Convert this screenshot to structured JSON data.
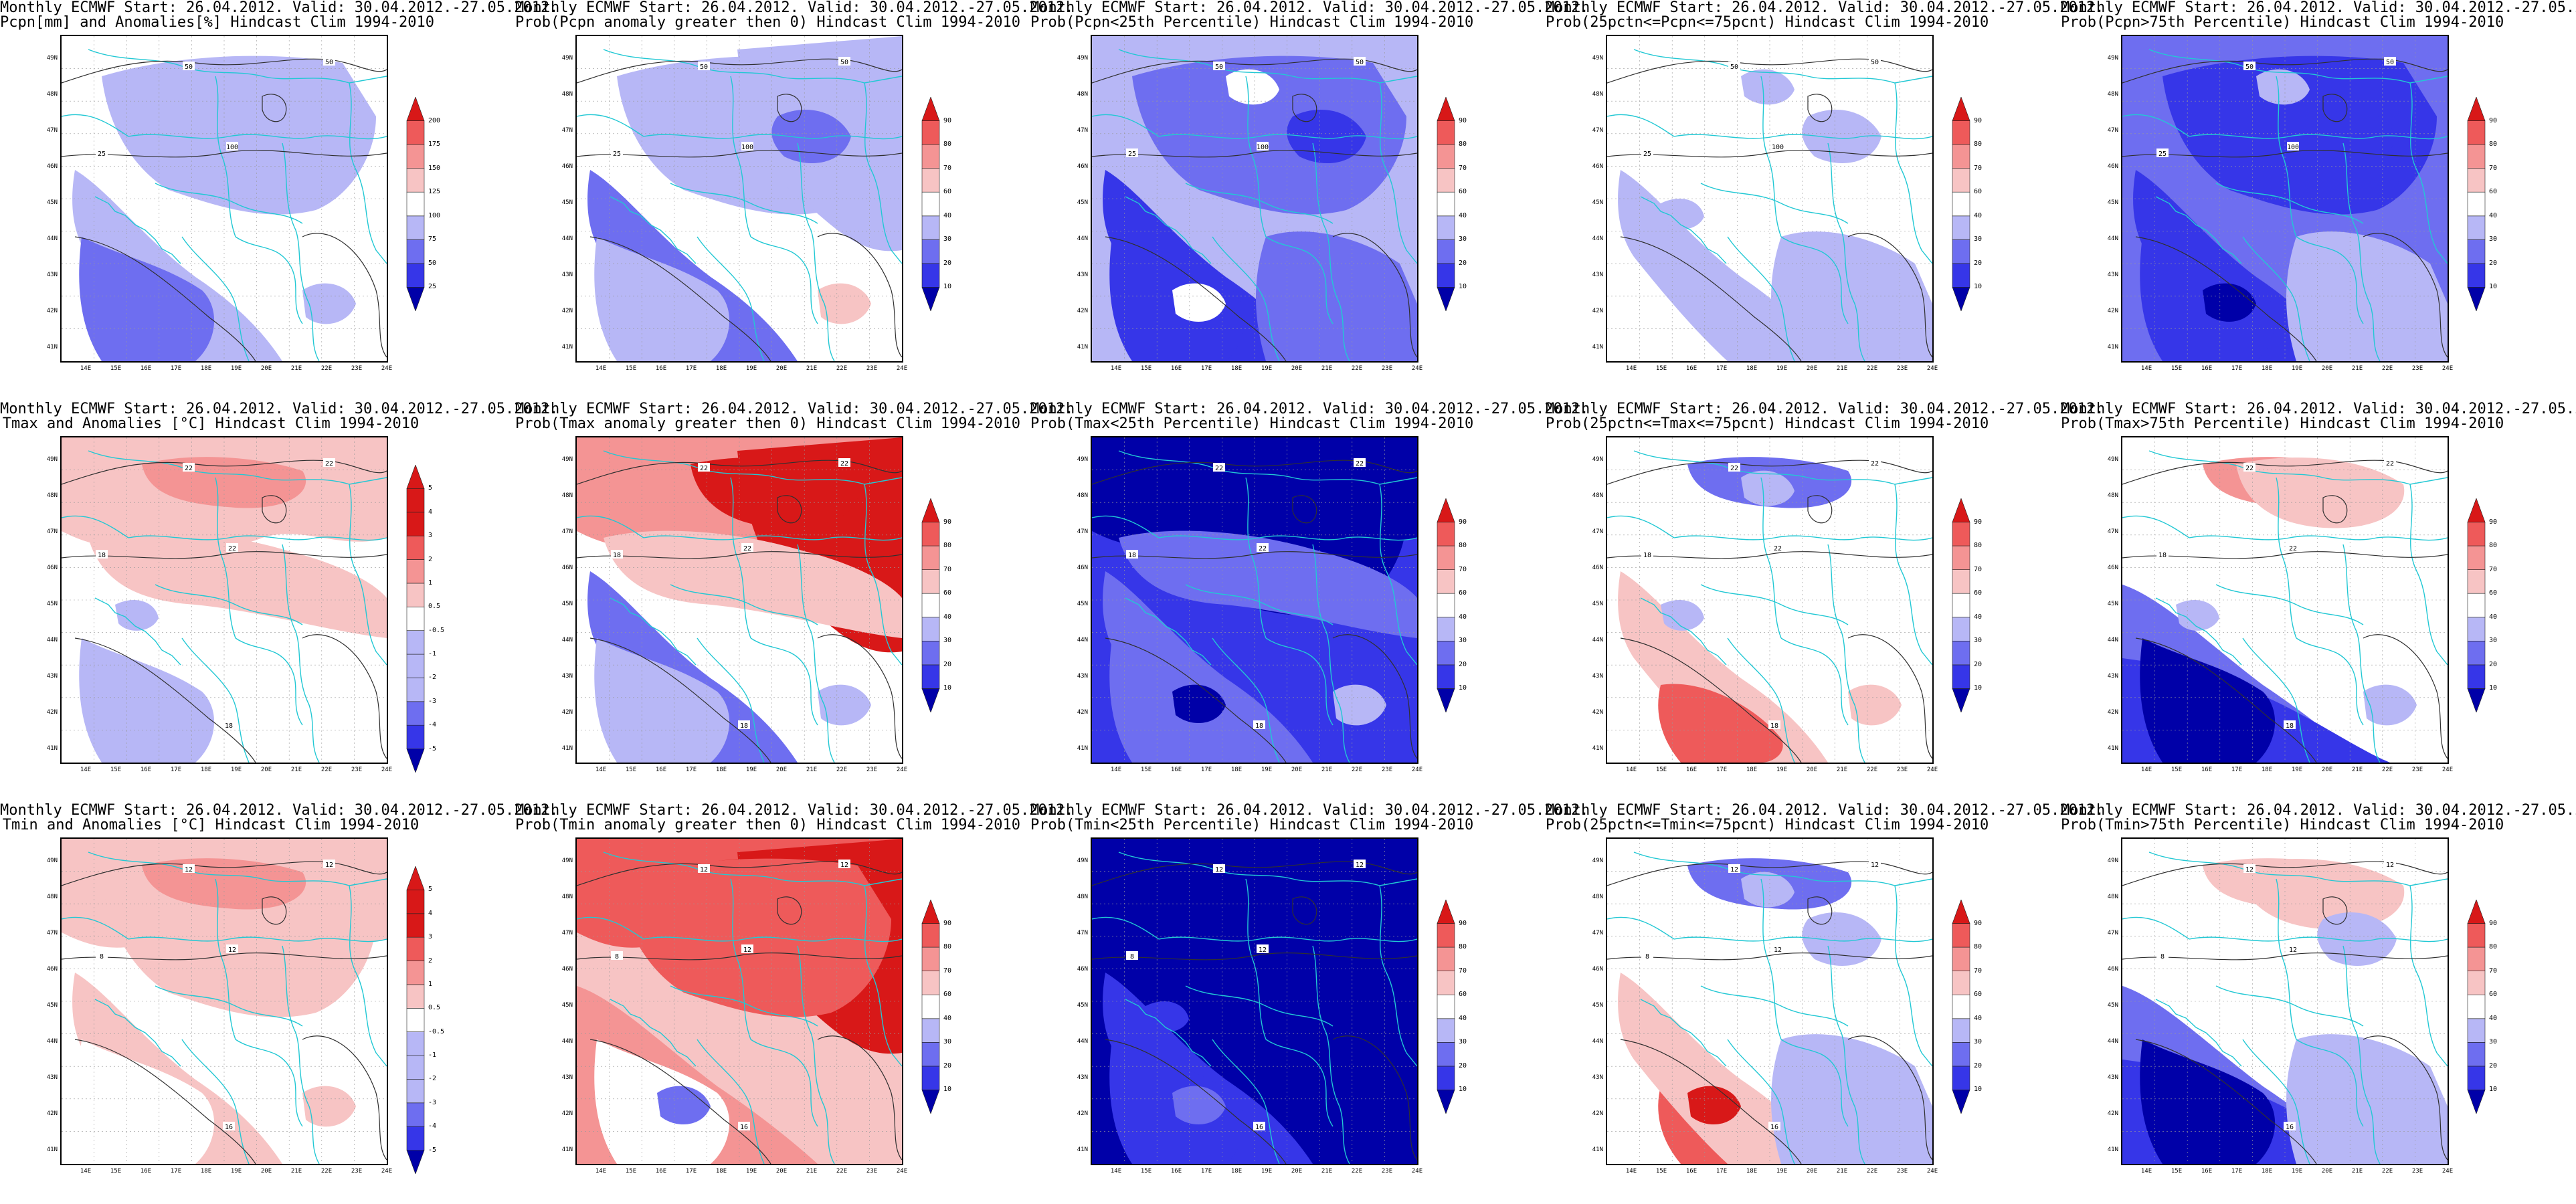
{
  "figure": {
    "source_line": "Monthly ECMWF Start: 26.04.2012. Valid: 30.04.2012.-27.05.2012.",
    "lat_ticks": [
      "41N",
      "42N",
      "43N",
      "44N",
      "45N",
      "46N",
      "47N",
      "48N",
      "49N"
    ],
    "lon_ticks": [
      "14E",
      "15E",
      "16E",
      "17E",
      "18E",
      "19E",
      "20E",
      "21E",
      "22E",
      "23E",
      "24E"
    ],
    "colors": {
      "dark_blue": "#0000a8",
      "mid_blue": "#3636e8",
      "blue": "#6e6ef0",
      "light_blue": "#b7b7f6",
      "white": "#ffffff",
      "light_red": "#f7c4c4",
      "red_1": "#f49494",
      "red": "#ee5a5a",
      "dark_red": "#d81818",
      "border_cyan": "#22c8d4",
      "contour": "#303030"
    }
  },
  "scales": {
    "precip_pct": [
      "25",
      "50",
      "75",
      "100",
      "125",
      "150",
      "175",
      "200"
    ],
    "temp_anom": [
      "-5",
      "-4",
      "-3",
      "-2",
      "-1",
      "-0.5",
      "0.5",
      "1",
      "2",
      "3",
      "4",
      "5"
    ],
    "prob": [
      "10",
      "20",
      "30",
      "40",
      "60",
      "70",
      "80",
      "90"
    ]
  },
  "rows": [
    {
      "variable": "Pcpn",
      "panels": [
        {
          "subtitle": "Pcpn[mm] and Anomalies[%] Hindcast Clim 1994-2010",
          "scale": "precip_pct",
          "pattern": "precip_anom",
          "contour_labels": [
            "50",
            "50",
            "25",
            "100"
          ]
        },
        {
          "subtitle": "Prob(Pcpn anomaly greater then 0) Hindcast Clim 1994-2010",
          "scale": "prob",
          "pattern": "precip_pos",
          "contour_labels": [
            "50",
            "50",
            "25",
            "100"
          ]
        },
        {
          "subtitle": "Prob(Pcpn<25th Percentile) Hindcast Clim 1994-2010",
          "scale": "prob",
          "pattern": "precip_low",
          "contour_labels": [
            "50",
            "50",
            "25",
            "100"
          ]
        },
        {
          "subtitle": "Prob(25pctn<=Pcpn<=75pcnt) Hindcast Clim 1994-2010",
          "scale": "prob",
          "pattern": "precip_mid",
          "contour_labels": [
            "50",
            "50",
            "25",
            "100"
          ]
        },
        {
          "subtitle": "Prob(Pcpn>75th Percentile) Hindcast Clim 1994-2010",
          "scale": "prob",
          "pattern": "precip_high",
          "contour_labels": [
            "50",
            "50",
            "25",
            "100"
          ]
        }
      ]
    },
    {
      "variable": "Tmax",
      "panels": [
        {
          "subtitle": "Tmax and Anomalies [°C] Hindcast Clim 1994-2010",
          "scale": "temp_anom",
          "pattern": "tmax_anom",
          "contour_labels": [
            "22",
            "22",
            "18",
            "22",
            "18"
          ]
        },
        {
          "subtitle": "Prob(Tmax anomaly greater then 0) Hindcast Clim 1994-2010",
          "scale": "prob",
          "pattern": "tmax_pos",
          "contour_labels": [
            "22",
            "22",
            "18",
            "22",
            "18"
          ]
        },
        {
          "subtitle": "Prob(Tmax<25th Percentile) Hindcast Clim 1994-2010",
          "scale": "prob",
          "pattern": "tmax_low",
          "contour_labels": [
            "22",
            "22",
            "18",
            "22",
            "18"
          ]
        },
        {
          "subtitle": "Prob(25pctn<=Tmax<=75pcnt) Hindcast Clim 1994-2010",
          "scale": "prob",
          "pattern": "tmax_mid",
          "contour_labels": [
            "22",
            "22",
            "18",
            "22",
            "18"
          ]
        },
        {
          "subtitle": "Prob(Tmax>75th Percentile) Hindcast Clim 1994-2010",
          "scale": "prob",
          "pattern": "tmax_high",
          "contour_labels": [
            "22",
            "22",
            "18",
            "22",
            "18"
          ]
        }
      ]
    },
    {
      "variable": "Tmin",
      "panels": [
        {
          "subtitle": "Tmin and Anomalies [°C] Hindcast Clim 1994-2010",
          "scale": "temp_anom",
          "pattern": "tmin_anom",
          "contour_labels": [
            "12",
            "12",
            "8",
            "12",
            "16"
          ]
        },
        {
          "subtitle": "Prob(Tmin anomaly greater then 0) Hindcast Clim 1994-2010",
          "scale": "prob",
          "pattern": "tmin_pos",
          "contour_labels": [
            "12",
            "12",
            "8",
            "12",
            "16"
          ]
        },
        {
          "subtitle": "Prob(Tmin<25th Percentile) Hindcast Clim 1994-2010",
          "scale": "prob",
          "pattern": "tmin_low",
          "contour_labels": [
            "12",
            "12",
            "8",
            "12",
            "16"
          ]
        },
        {
          "subtitle": "Prob(25pctn<=Tmin<=75pcnt) Hindcast Clim 1994-2010",
          "scale": "prob",
          "pattern": "tmin_mid",
          "contour_labels": [
            "12",
            "12",
            "8",
            "12",
            "16"
          ]
        },
        {
          "subtitle": "Prob(Tmin>75th Percentile) Hindcast Clim 1994-2010",
          "scale": "prob",
          "pattern": "tmin_high",
          "contour_labels": [
            "12",
            "12",
            "8",
            "12",
            "16"
          ]
        }
      ]
    }
  ]
}
